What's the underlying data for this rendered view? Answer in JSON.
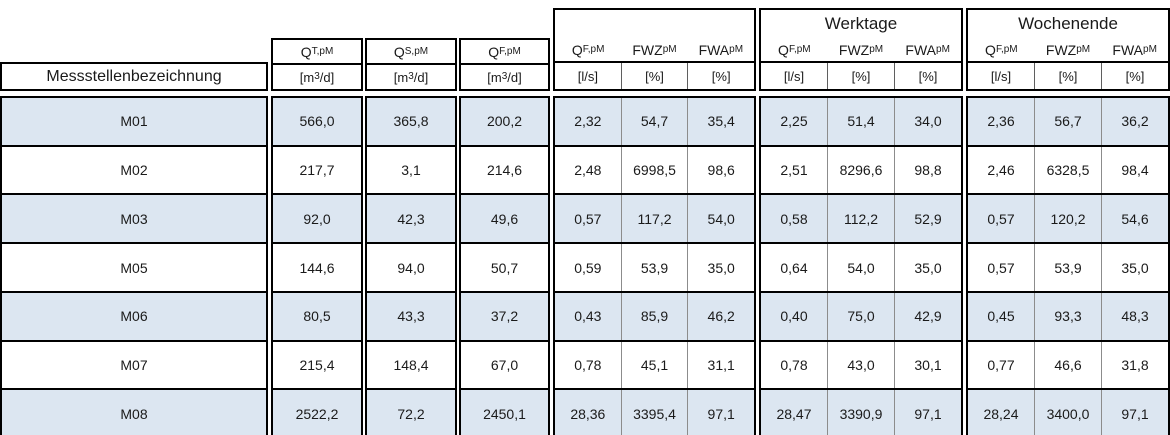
{
  "table": {
    "row_label_header": "Messstellenbezeichnung",
    "flow_columns": [
      {
        "base": "Q",
        "sub": "T,pM",
        "unit_pre": "[m",
        "unit_sup": "3",
        "unit_post": "/d]"
      },
      {
        "base": "Q",
        "sub": "S,pM",
        "unit_pre": "[m",
        "unit_sup": "3",
        "unit_post": "/d]"
      },
      {
        "base": "Q",
        "sub": "F,pM",
        "unit_pre": "[m",
        "unit_sup": "3",
        "unit_post": "/d]"
      }
    ],
    "groups": [
      {
        "title": "",
        "columns": [
          {
            "base": "Q",
            "sub": "F,pM",
            "unit": "[l/s]"
          },
          {
            "base": "FWZ",
            "sub": "pM",
            "unit": "[%]"
          },
          {
            "base": "FWA",
            "sub": "pM",
            "unit": "[%]"
          }
        ]
      },
      {
        "title": "Werktage",
        "columns": [
          {
            "base": "Q",
            "sub": "F,pM",
            "unit": "[l/s]"
          },
          {
            "base": "FWZ",
            "sub": "pM",
            "unit": "[%]"
          },
          {
            "base": "FWA",
            "sub": "pM",
            "unit": "[%]"
          }
        ]
      },
      {
        "title": "Wochenende",
        "columns": [
          {
            "base": "Q",
            "sub": "F,pM",
            "unit": "[l/s]"
          },
          {
            "base": "FWZ",
            "sub": "pM",
            "unit": "[%]"
          },
          {
            "base": "FWA",
            "sub": "pM",
            "unit": "[%]"
          }
        ]
      }
    ],
    "rows": [
      {
        "label": "M01",
        "flow": [
          "566,0",
          "365,8",
          "200,2"
        ],
        "total": [
          "2,32",
          "54,7",
          "35,4"
        ],
        "werktage": [
          "2,25",
          "51,4",
          "34,0"
        ],
        "wochenende": [
          "2,36",
          "56,7",
          "36,2"
        ]
      },
      {
        "label": "M02",
        "flow": [
          "217,7",
          "3,1",
          "214,6"
        ],
        "total": [
          "2,48",
          "6998,5",
          "98,6"
        ],
        "werktage": [
          "2,51",
          "8296,6",
          "98,8"
        ],
        "wochenende": [
          "2,46",
          "6328,5",
          "98,4"
        ]
      },
      {
        "label": "M03",
        "flow": [
          "92,0",
          "42,3",
          "49,6"
        ],
        "total": [
          "0,57",
          "117,2",
          "54,0"
        ],
        "werktage": [
          "0,58",
          "112,2",
          "52,9"
        ],
        "wochenende": [
          "0,57",
          "120,2",
          "54,6"
        ]
      },
      {
        "label": "M05",
        "flow": [
          "144,6",
          "94,0",
          "50,7"
        ],
        "total": [
          "0,59",
          "53,9",
          "35,0"
        ],
        "werktage": [
          "0,64",
          "54,0",
          "35,0"
        ],
        "wochenende": [
          "0,57",
          "53,9",
          "35,0"
        ]
      },
      {
        "label": "M06",
        "flow": [
          "80,5",
          "43,3",
          "37,2"
        ],
        "total": [
          "0,43",
          "85,9",
          "46,2"
        ],
        "werktage": [
          "0,40",
          "75,0",
          "42,9"
        ],
        "wochenende": [
          "0,45",
          "93,3",
          "48,3"
        ]
      },
      {
        "label": "M07",
        "flow": [
          "215,4",
          "148,4",
          "67,0"
        ],
        "total": [
          "0,78",
          "45,1",
          "31,1"
        ],
        "werktage": [
          "0,78",
          "43,0",
          "30,1"
        ],
        "wochenende": [
          "0,77",
          "46,6",
          "31,8"
        ]
      },
      {
        "label": "M08",
        "flow": [
          "2522,2",
          "72,2",
          "2450,1"
        ],
        "total": [
          "28,36",
          "3395,4",
          "97,1"
        ],
        "werktage": [
          "28,47",
          "3390,9",
          "97,1"
        ],
        "wochenende": [
          "28,24",
          "3400,0",
          "97,1"
        ]
      }
    ],
    "colors": {
      "row_alt_background": "#dce6f1",
      "row_background": "#ffffff",
      "border": "#000000",
      "inner_separator": "#8c8c8c"
    }
  }
}
